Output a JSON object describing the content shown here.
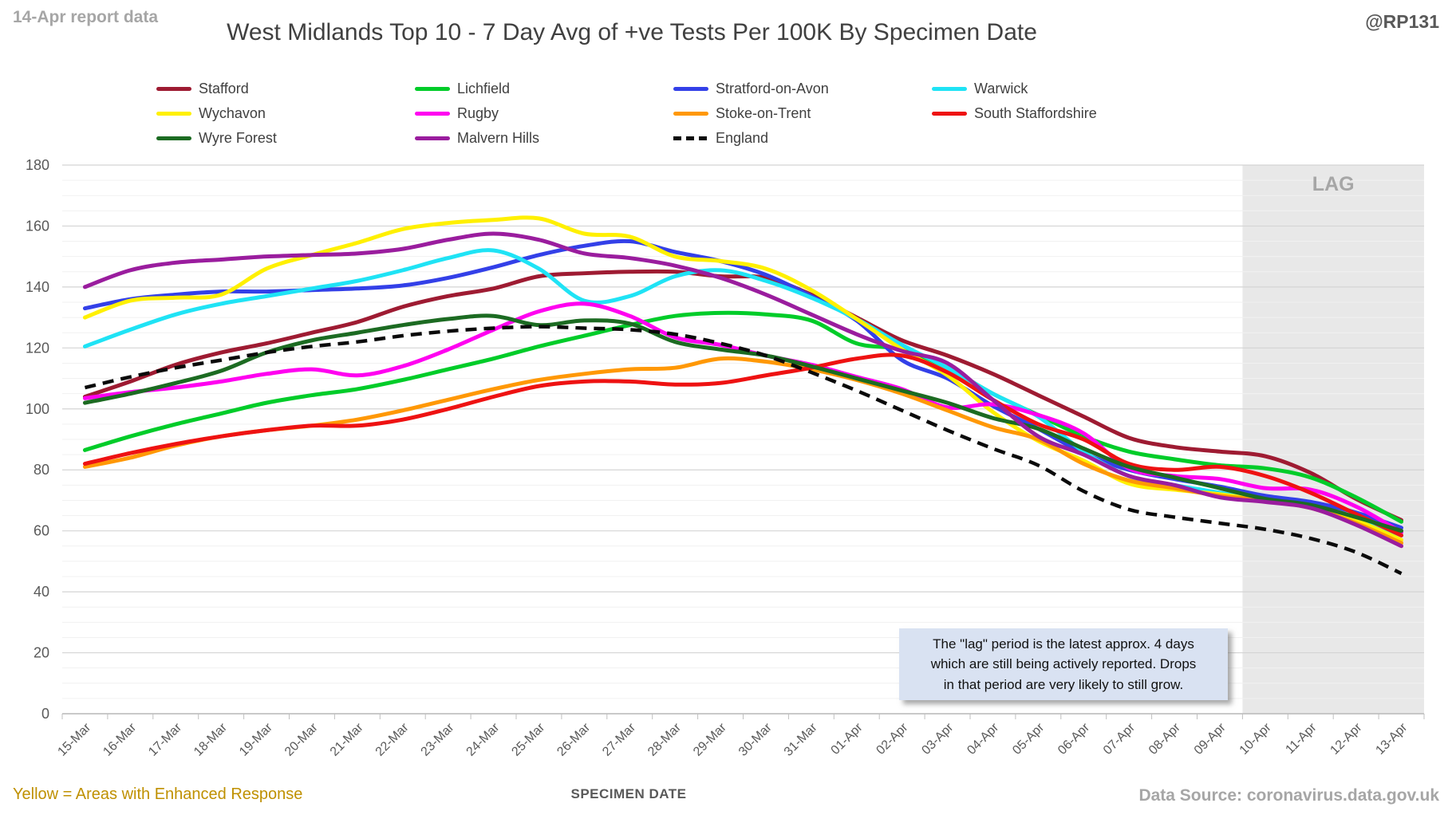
{
  "header": {
    "report_note": "14-Apr report data",
    "title": "West Midlands Top 10 - 7 Day Avg of +ve Tests Per 100K By Specimen Date",
    "handle": "@RP131"
  },
  "footer": {
    "note_left": "Yellow = Areas with Enhanced Response",
    "xlabel": "SPECIMEN DATE",
    "source": "Data Source: coronavirus.data.gov.uk"
  },
  "annotations": {
    "lag_label": "LAG",
    "lag_box_lines": [
      "The \"lag\" period is the latest approx. 4 days",
      "which are still being actively reported.  Drops",
      "in that period are very likely to still grow."
    ]
  },
  "chart_data": {
    "type": "line",
    "title": "West Midlands Top 10 - 7 Day Avg of +ve Tests Per 100K By Specimen Date",
    "xlabel": "SPECIMEN DATE",
    "ylabel": "",
    "ylim": [
      0,
      180
    ],
    "ytick_major": 20,
    "ytick_minor": 5,
    "grid": true,
    "legend_position": "top",
    "lag_region": {
      "label": "LAG",
      "start_index": 26,
      "fill": "#e8e8e8"
    },
    "axis_text_color": "#595959",
    "categories": [
      "15-Mar",
      "16-Mar",
      "17-Mar",
      "18-Mar",
      "19-Mar",
      "20-Mar",
      "21-Mar",
      "22-Mar",
      "23-Mar",
      "24-Mar",
      "25-Mar",
      "26-Mar",
      "27-Mar",
      "28-Mar",
      "29-Mar",
      "30-Mar",
      "31-Mar",
      "01-Apr",
      "02-Apr",
      "03-Apr",
      "04-Apr",
      "05-Apr",
      "06-Apr",
      "07-Apr",
      "08-Apr",
      "09-Apr",
      "10-Apr",
      "11-Apr",
      "12-Apr",
      "13-Apr"
    ],
    "series": [
      {
        "name": "Stafford",
        "color": "#9e1b32",
        "dashed": false,
        "values": [
          104,
          109,
          114.5,
          118.5,
          121.5,
          125,
          128.5,
          133.5,
          137,
          139.5,
          143.5,
          144.5,
          145,
          145,
          143.5,
          143,
          137.5,
          130,
          122.5,
          117.5,
          111.5,
          104.5,
          97.5,
          90.5,
          87.5,
          86,
          84.5,
          79,
          70.5,
          63.5
        ]
      },
      {
        "name": "Lichfield",
        "color": "#00cc29",
        "dashed": false,
        "values": [
          86.5,
          91,
          95,
          98.5,
          102,
          104.5,
          106.5,
          109.5,
          113,
          116.5,
          120.5,
          124,
          127.5,
          130.5,
          131.5,
          131,
          129,
          121.5,
          119.5,
          113.5,
          105,
          98,
          91,
          86,
          83.5,
          81.5,
          80.5,
          77.5,
          71,
          63
        ]
      },
      {
        "name": "Stratford-on-Avon",
        "color": "#3340e8",
        "dashed": false,
        "values": [
          133,
          136,
          137.5,
          138.5,
          138.5,
          139,
          139.5,
          140.5,
          143,
          146.5,
          150.5,
          153.5,
          155,
          151.5,
          148.5,
          144,
          137,
          129,
          116,
          110,
          101,
          93.5,
          85.5,
          80,
          77,
          74.5,
          71.5,
          69.5,
          66,
          61
        ]
      },
      {
        "name": "Warwick",
        "color": "#1fe3f5",
        "dashed": false,
        "values": [
          120.5,
          126,
          131,
          134.5,
          137,
          139.5,
          142,
          145.5,
          149.5,
          152,
          146,
          135.5,
          137,
          143.5,
          145.5,
          142,
          136.5,
          129.5,
          121,
          113.5,
          105,
          97.5,
          86,
          78,
          75,
          72.5,
          70,
          68,
          64,
          58.5
        ]
      },
      {
        "name": "Wychavon",
        "color": "#fff000",
        "dashed": false,
        "values": [
          130,
          135.5,
          136.5,
          137.5,
          146,
          150.5,
          154.5,
          159,
          161,
          162,
          162.5,
          157.5,
          156.5,
          150,
          148.5,
          146,
          139,
          129.5,
          119.5,
          111,
          99,
          89.5,
          83,
          75.5,
          73.5,
          72,
          70,
          68,
          63.5,
          57
        ]
      },
      {
        "name": "Rugby",
        "color": "#ff00f0",
        "dashed": false,
        "values": [
          103.5,
          105.5,
          107,
          109,
          111.5,
          113,
          111,
          114,
          119.5,
          126,
          132,
          134.5,
          130.5,
          123.5,
          121,
          117.5,
          114.5,
          110.5,
          106.5,
          100.5,
          101.5,
          98,
          92,
          80.5,
          78,
          77,
          74,
          73.5,
          68,
          59.5
        ]
      },
      {
        "name": "Stoke-on-Trent",
        "color": "#ff9805",
        "dashed": false,
        "values": [
          81,
          84,
          88,
          91,
          93,
          94.5,
          96.5,
          99.5,
          103,
          106.5,
          109.5,
          111.5,
          113,
          113.5,
          116.5,
          115.5,
          113,
          109.5,
          105,
          99.5,
          94,
          90,
          82,
          76.5,
          74,
          71.5,
          70,
          67.5,
          62.5,
          56
        ]
      },
      {
        "name": "South Staffordshire",
        "color": "#ee1212",
        "dashed": false,
        "values": [
          82,
          85.5,
          88.5,
          91,
          93,
          94.5,
          94.5,
          96.5,
          100,
          104,
          107.5,
          109,
          109,
          108,
          108.5,
          111,
          113.5,
          116.5,
          117.5,
          112,
          103,
          95,
          90,
          82,
          80,
          81,
          78,
          72.5,
          65.5,
          58.5
        ]
      },
      {
        "name": "Wyre Forest",
        "color": "#1c6b22",
        "dashed": false,
        "values": [
          102,
          105,
          108.5,
          112.5,
          118.5,
          122.5,
          125,
          127.5,
          129.5,
          130.5,
          127.5,
          129,
          128,
          122,
          119.5,
          117.5,
          114,
          110,
          106,
          102,
          97,
          93.5,
          87,
          81,
          77.5,
          74,
          70.5,
          68.5,
          64.5,
          60
        ]
      },
      {
        "name": "Malvern Hills",
        "color": "#9a1d9e",
        "dashed": false,
        "values": [
          140,
          145.5,
          148,
          149,
          150,
          150.5,
          151,
          152.5,
          155.5,
          157.5,
          155.5,
          151,
          149.5,
          147,
          143,
          137.5,
          131,
          124.5,
          119,
          115,
          103,
          91,
          85,
          78,
          75,
          71,
          69.5,
          67.5,
          62,
          55
        ]
      },
      {
        "name": "England",
        "color": "#0a0a0a",
        "dashed": true,
        "values": [
          107,
          110.5,
          113.5,
          116,
          118.5,
          120.5,
          122,
          124,
          125.5,
          126.5,
          127,
          126.5,
          126,
          124.5,
          121.5,
          117.5,
          112,
          106,
          99.5,
          93,
          87,
          81.5,
          73,
          67,
          64.5,
          62.5,
          60.5,
          57.5,
          53,
          46
        ]
      }
    ]
  }
}
